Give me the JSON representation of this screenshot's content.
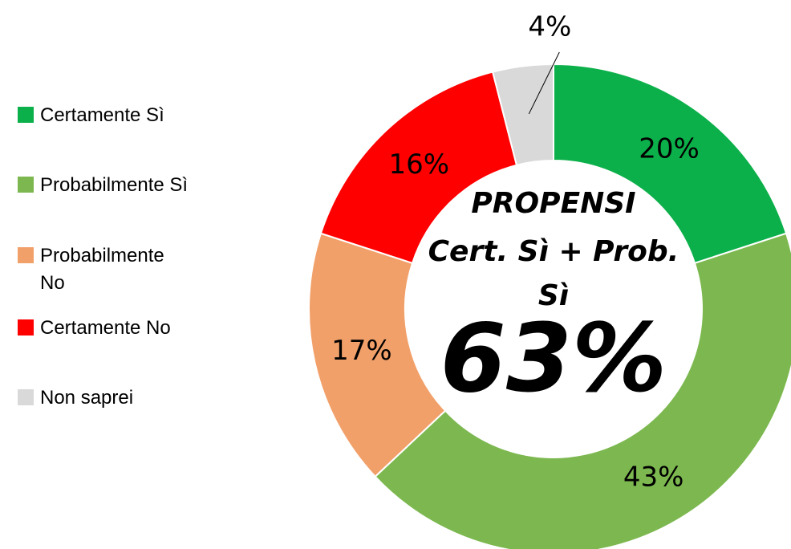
{
  "chart_data": {
    "type": "donut",
    "categories": [
      "Certamente Sì",
      "Probabilmente Sì",
      "Probabilmente No",
      "Certamente No",
      "Non saprei"
    ],
    "values": [
      20,
      43,
      17,
      16,
      4
    ],
    "value_labels": [
      "20%",
      "43%",
      "17%",
      "16%",
      "4%"
    ],
    "colors": [
      "#0cb04a",
      "#7cb84f",
      "#f2a06a",
      "#ff0000",
      "#d9d9d9"
    ],
    "center_text": [
      "PROPENSI",
      "Cert. Sì + Prob.",
      "Sì"
    ],
    "center_value": 63,
    "center_value_label": "63%",
    "legend": "left"
  }
}
